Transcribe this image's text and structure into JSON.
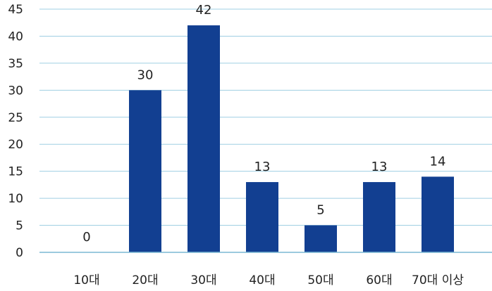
{
  "chart_data": {
    "type": "bar",
    "title": "",
    "xlabel": "",
    "ylabel": "",
    "categories": [
      "10대",
      "20대",
      "30대",
      "40대",
      "50대",
      "60대",
      "70대 이상"
    ],
    "values": [
      0,
      30,
      42,
      13,
      5,
      13,
      14
    ],
    "data_labels": [
      "0",
      "30",
      "42",
      "13",
      "5",
      "13",
      "14"
    ],
    "ylim": [
      0,
      45
    ],
    "yticks": [
      0,
      5,
      10,
      15,
      20,
      25,
      30,
      35,
      40,
      45
    ],
    "grid": true,
    "legend": "none",
    "colors": {
      "bar": "#123f91",
      "grid": "#9fcfe3",
      "axis": "#7ab8d3"
    }
  }
}
